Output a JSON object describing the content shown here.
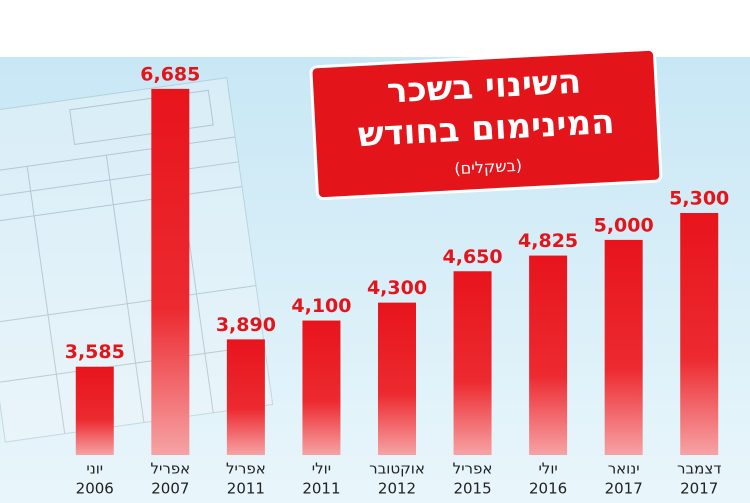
{
  "chart_data": {
    "type": "bar",
    "title": [
      "השינוי בשכר",
      "המינימום בחודש"
    ],
    "subtitle": "(בשקלים)",
    "categories": [
      [
        "יוני",
        "2006"
      ],
      [
        "אפריל",
        "2007"
      ],
      [
        "אפריל",
        "2011"
      ],
      [
        "יולי",
        "2011"
      ],
      [
        "אוקטובר",
        "2012"
      ],
      [
        "אפריל",
        "2015"
      ],
      [
        "יולי",
        "2016"
      ],
      [
        "ינואר",
        "2017"
      ],
      [
        "דצמבר",
        "2017"
      ]
    ],
    "values": [
      3585,
      6685,
      3890,
      4100,
      4300,
      4650,
      4825,
      5000,
      5300
    ],
    "value_labels": [
      "3,585",
      "6,685",
      "3,890",
      "4,100",
      "4,300",
      "4,650",
      "4,825",
      "5,000",
      "5,300"
    ],
    "color": "#e8141c",
    "ylim": [
      2600,
      5300
    ]
  }
}
